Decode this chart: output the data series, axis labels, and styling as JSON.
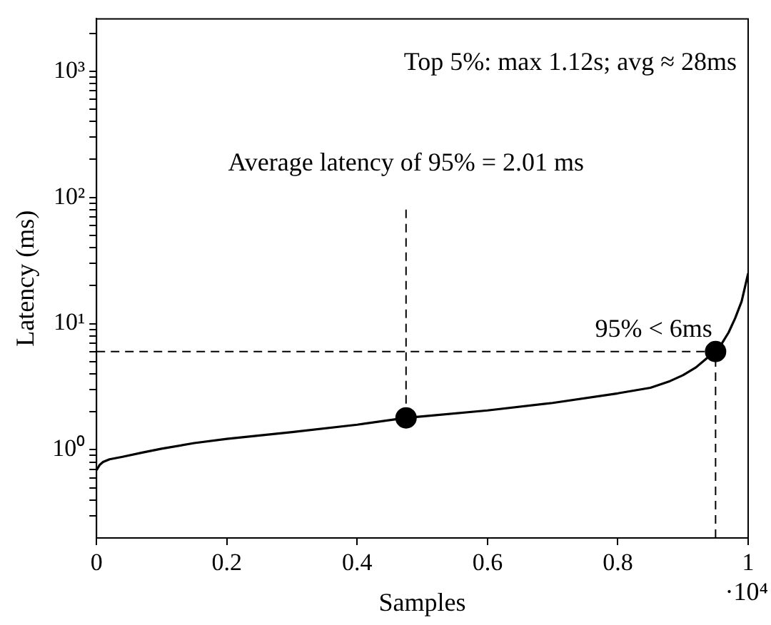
{
  "chart_data": {
    "type": "line",
    "xlabel": "Samples",
    "ylabel": "Latency (ms)",
    "log": "y",
    "grid": false,
    "legend": false,
    "xlim": [
      0,
      1
    ],
    "xticks": [
      0,
      0.2,
      0.4,
      0.6,
      0.8,
      1
    ],
    "ylim": [
      0.2,
      2600
    ],
    "yticks": [
      {
        "value": 0.3,
        "label": null
      },
      {
        "value": 0.4,
        "label": null
      },
      {
        "value": 0.5,
        "label": null
      },
      {
        "value": 0.6,
        "label": null
      },
      {
        "value": 0.7,
        "label": null
      },
      {
        "value": 0.8,
        "label": null
      },
      {
        "value": 0.9,
        "label": null
      },
      {
        "value": 1,
        "label": "10⁰"
      },
      {
        "value": 2,
        "label": null
      },
      {
        "value": 3,
        "label": null
      },
      {
        "value": 4,
        "label": null
      },
      {
        "value": 5,
        "label": null
      },
      {
        "value": 6,
        "label": null
      },
      {
        "value": 7,
        "label": null
      },
      {
        "value": 8,
        "label": null
      },
      {
        "value": 9,
        "label": null
      },
      {
        "value": 10,
        "label": "10¹"
      },
      {
        "value": 20,
        "label": null
      },
      {
        "value": 30,
        "label": null
      },
      {
        "value": 40,
        "label": null
      },
      {
        "value": 50,
        "label": null
      },
      {
        "value": 60,
        "label": null
      },
      {
        "value": 70,
        "label": null
      },
      {
        "value": 80,
        "label": null
      },
      {
        "value": 90,
        "label": null
      },
      {
        "value": 100,
        "label": "10²"
      },
      {
        "value": 200,
        "label": null
      },
      {
        "value": 300,
        "label": null
      },
      {
        "value": 400,
        "label": null
      },
      {
        "value": 500,
        "label": null
      },
      {
        "value": 600,
        "label": null
      },
      {
        "value": 700,
        "label": null
      },
      {
        "value": 800,
        "label": null
      },
      {
        "value": 900,
        "label": null
      },
      {
        "value": 1000,
        "label": "10³"
      },
      {
        "value": 2000,
        "label": null
      }
    ],
    "series": [
      {
        "color": "#000000",
        "marker": "none",
        "line_style": "solid",
        "x": [
          0,
          0.005,
          0.01,
          0.02,
          0.04,
          0.07,
          0.1,
          0.15,
          0.2,
          0.3,
          0.4,
          0.475,
          0.5,
          0.6,
          0.7,
          0.8,
          0.85,
          0.88,
          0.9,
          0.92,
          0.94,
          0.95,
          0.96,
          0.97,
          0.98,
          0.99,
          1
        ],
        "values": [
          0.69,
          0.76,
          0.8,
          0.84,
          0.88,
          0.95,
          1.02,
          1.13,
          1.22,
          1.38,
          1.58,
          1.79,
          1.84,
          2.05,
          2.35,
          2.8,
          3.1,
          3.5,
          3.9,
          4.5,
          5.5,
          6,
          7,
          8.5,
          11,
          15,
          25
        ]
      },
      {
        "color": "#000000",
        "marker": "none",
        "line_style": "dashed",
        "x": [
          0,
          0.95
        ],
        "values": [
          6,
          6
        ]
      },
      {
        "color": "#000000",
        "marker": "none",
        "line_style": "dashed",
        "x": [
          0.95,
          0.95
        ],
        "values": [
          0.2,
          6
        ]
      },
      {
        "color": "#000000",
        "marker": "none",
        "line_style": "dashed",
        "x": [
          0.475,
          0.475
        ],
        "values": [
          1.79,
          80
        ]
      },
      {
        "type": "scatter",
        "color": "#000000",
        "marker": "circle",
        "x": [
          0.475,
          0.95
        ],
        "values": [
          1.79,
          6
        ]
      }
    ],
    "annotations": [
      "Top 5%: max 1.12s; avg ≈ 28ms",
      "Average latency of 95% = 2.01 ms",
      "95% < 6ms",
      "·10⁴"
    ]
  }
}
